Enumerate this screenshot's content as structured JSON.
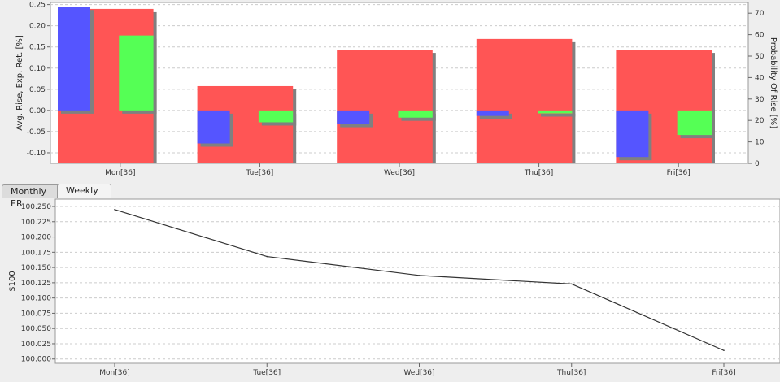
{
  "tabs": [
    {
      "label": "Monthly ER",
      "active": false
    },
    {
      "label": "Weekly ER",
      "active": true
    }
  ],
  "colors": {
    "probability": "#ff5555",
    "avg_rise": "#5555ff",
    "exp_ret": "#55ff55",
    "shadow": "#808080",
    "line": "#333333",
    "plot_bg": "#ffffff",
    "grid": "#cccccc"
  },
  "chart_data": [
    {
      "type": "bar",
      "categories": [
        "Mon[36]",
        "Tue[36]",
        "Wed[36]",
        "Thu[36]",
        "Fri[36]"
      ],
      "ylabel": "Avg. Rise, Exp. Ret. [%]",
      "y2label": "Probability Of Rise [%]",
      "ylim": [
        -0.125,
        0.255
      ],
      "y2lim": [
        0,
        75
      ],
      "yticks": [
        "0.25",
        "0.20",
        "0.15",
        "0.10",
        "0.05",
        "0.00",
        "-0.05",
        "-0.10"
      ],
      "y2ticks": [
        "70",
        "60",
        "50",
        "40",
        "30",
        "20",
        "10",
        "0"
      ],
      "series": [
        {
          "key": "probability",
          "axis": "right",
          "values": [
            72,
            36,
            53,
            58,
            53
          ]
        },
        {
          "key": "avg_rise",
          "axis": "left",
          "values": [
            0.245,
            -0.078,
            -0.032,
            -0.013,
            -0.11
          ]
        },
        {
          "key": "exp_ret",
          "axis": "left",
          "values": [
            0.177,
            -0.028,
            -0.017,
            -0.007,
            -0.058
          ]
        }
      ],
      "grid": true
    },
    {
      "type": "line",
      "categories": [
        "Mon[36]",
        "Tue[36]",
        "Wed[36]",
        "Thu[36]",
        "Fri[36]"
      ],
      "ylabel": "$100",
      "ylim": [
        99.993,
        100.262
      ],
      "yticks": [
        "100.250",
        "100.225",
        "100.200",
        "100.175",
        "100.150",
        "100.125",
        "100.100",
        "100.075",
        "100.050",
        "100.025",
        "100.000"
      ],
      "values": [
        100.245,
        100.168,
        100.137,
        100.123,
        100.014
      ],
      "grid": true
    }
  ]
}
